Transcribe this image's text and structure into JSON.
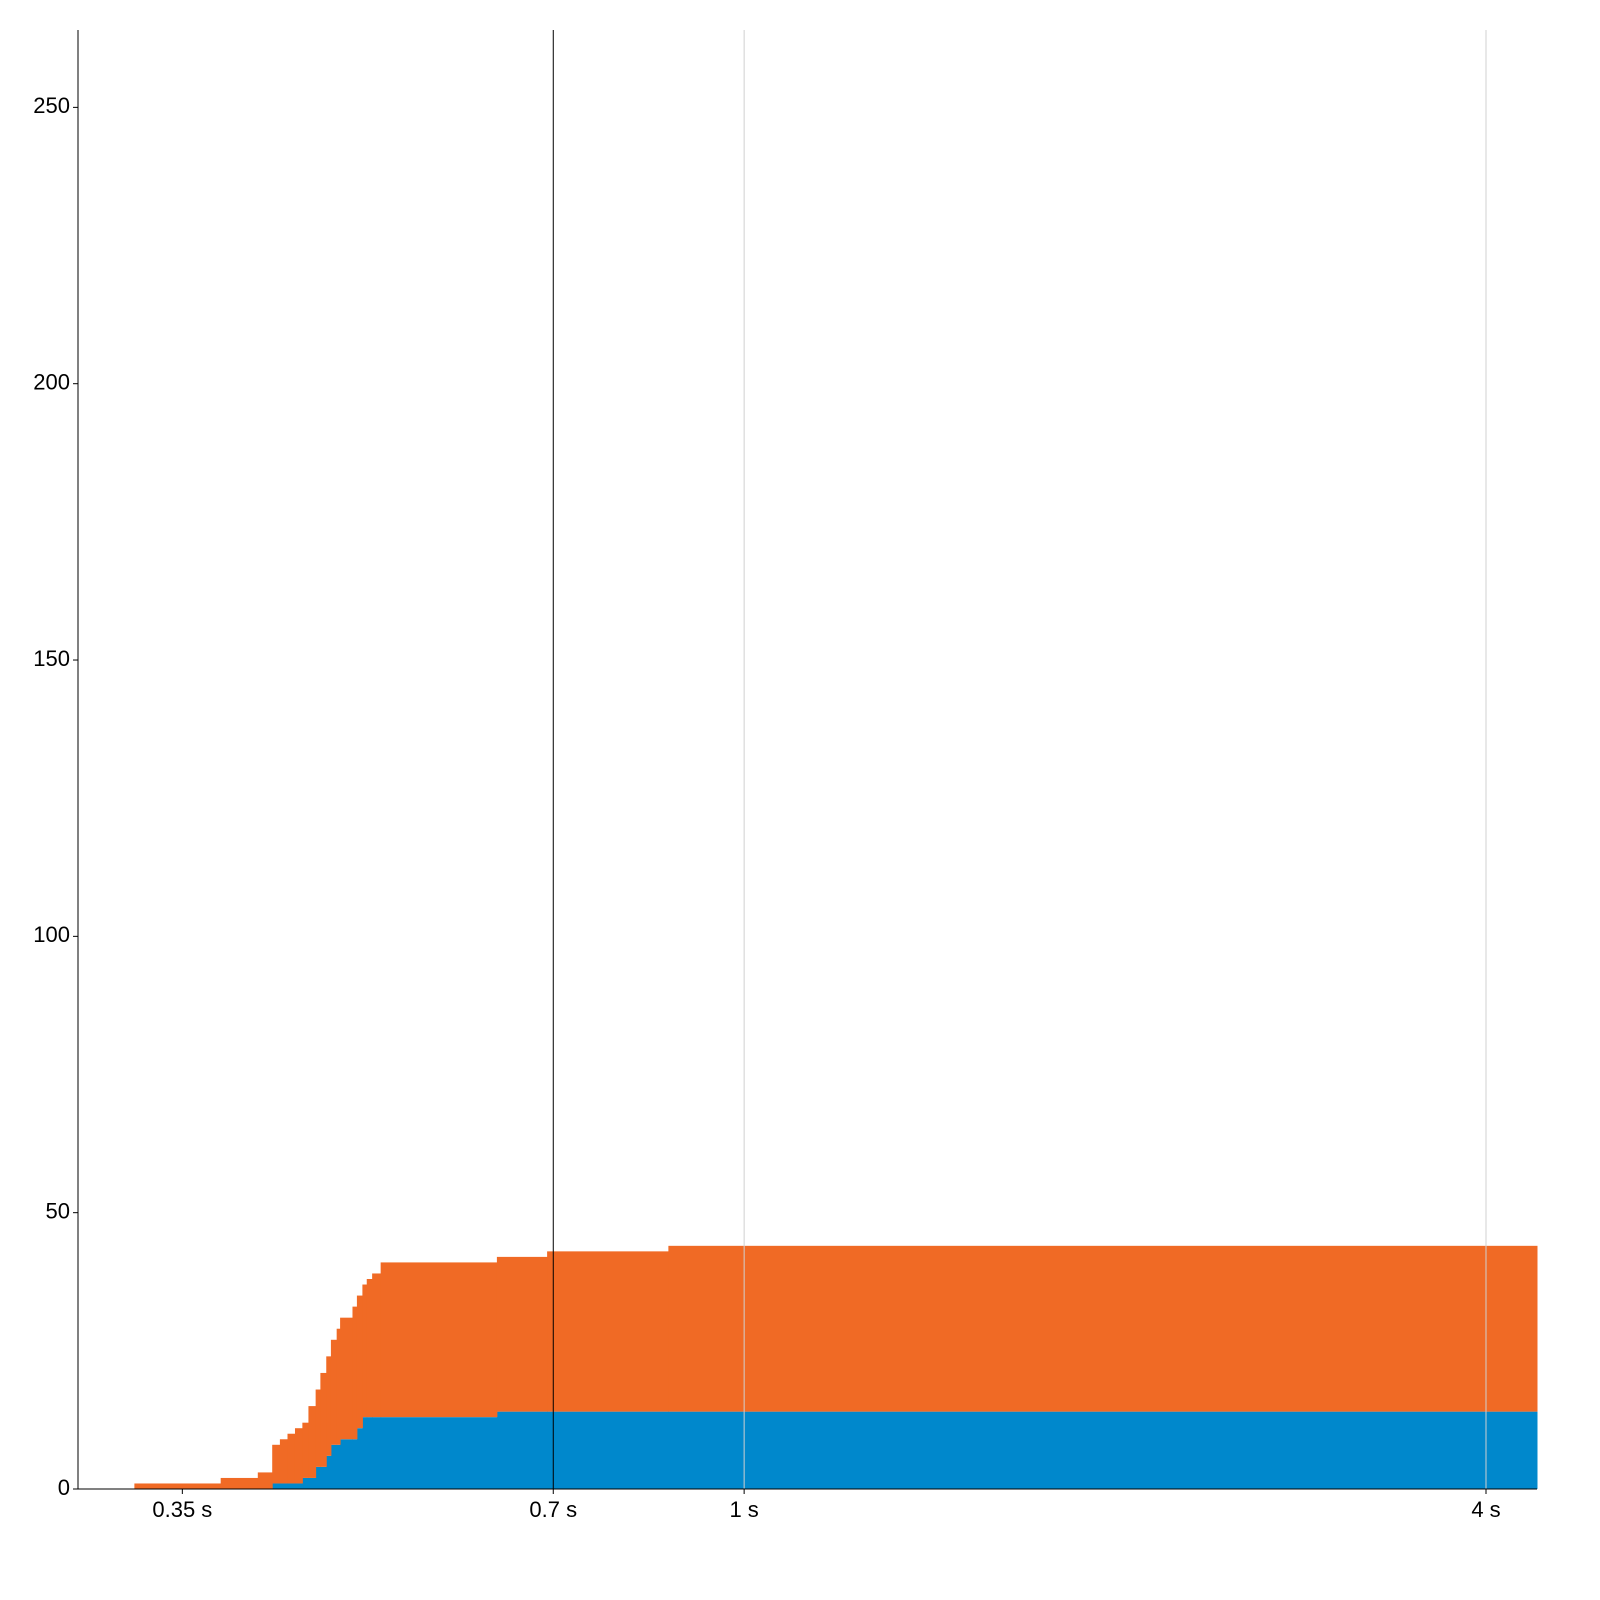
{
  "chart_data": {
    "type": "stacked-step-area",
    "x": [
      0.32,
      0.376,
      0.403,
      0.414,
      0.42,
      0.426,
      0.432,
      0.438,
      0.443,
      0.449,
      0.453,
      0.458,
      0.462,
      0.467,
      0.47,
      0.481,
      0.485,
      0.49,
      0.494,
      0.499,
      0.507,
      0.63,
      0.692,
      0.868
    ],
    "series": [
      {
        "color": "#0088cc",
        "values": [
          0,
          0,
          0,
          1,
          1,
          1,
          1,
          2,
          2,
          4,
          4,
          6,
          8,
          8,
          9,
          9,
          11,
          13,
          13,
          13,
          13,
          14,
          14,
          14
        ]
      },
      {
        "color": "#f06a25",
        "values": [
          1,
          2,
          3,
          7,
          8,
          9,
          10,
          10,
          13,
          14,
          17,
          18,
          19,
          21,
          22,
          24,
          24,
          24,
          25,
          26,
          28,
          28,
          29,
          30
        ]
      }
    ],
    "xlim": [
      0.288,
      4.4
    ],
    "x_log": true,
    "xticks": [
      {
        "value": 0.35,
        "label": "0.35 s"
      },
      {
        "value": 0.7,
        "label": "0.7 s"
      },
      {
        "value": 1,
        "label": "1 s"
      },
      {
        "value": 4,
        "label": "4 s"
      }
    ],
    "x_gridlines": [
      1,
      4
    ],
    "x_marker": 0.7,
    "ylim": [
      0,
      264
    ],
    "yticks": [
      0,
      50,
      100,
      150,
      200,
      250
    ]
  }
}
